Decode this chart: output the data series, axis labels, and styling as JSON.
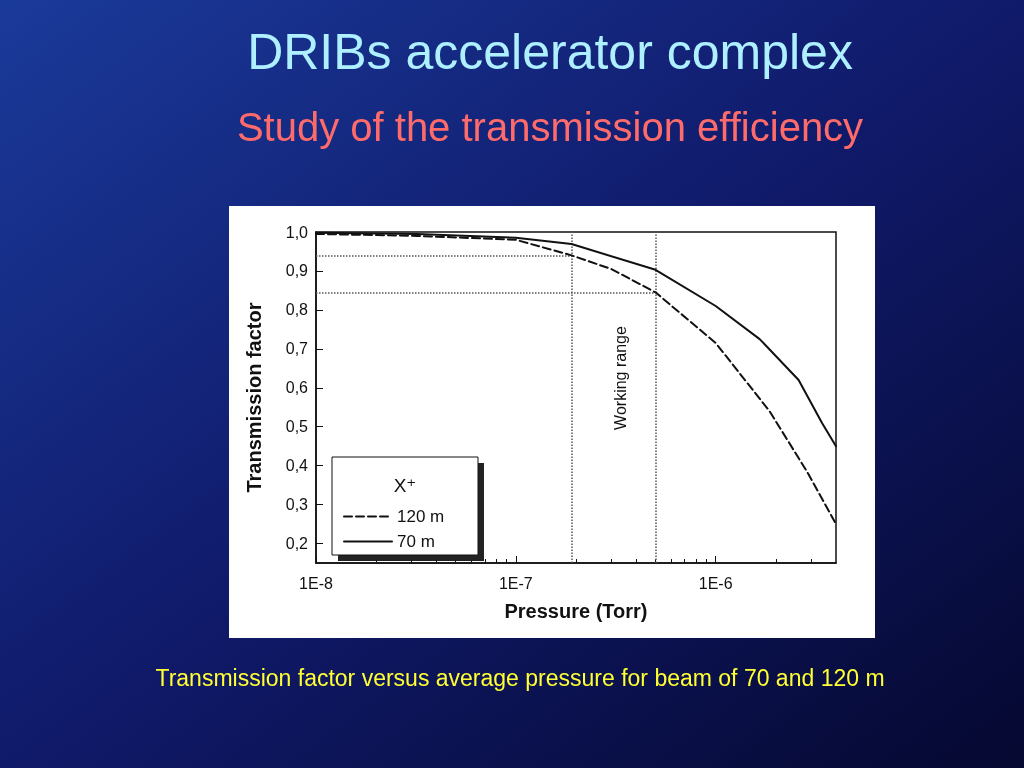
{
  "chart_data": {
    "type": "line",
    "title": "DRIBs accelerator complex",
    "subtitle": "Study of the transmission efficiency",
    "xlabel": "Pressure (Torr)",
    "ylabel": "Transmission factor",
    "legend_title": "X⁺",
    "log": "x",
    "xlim": [
      1e-08,
      4e-06
    ],
    "xticks": [
      {
        "value": 1e-08,
        "label": "1E-8"
      },
      {
        "value": 1e-07,
        "label": "1E-7"
      },
      {
        "value": 1e-06,
        "label": "1E-6"
      }
    ],
    "ylim": [
      0.15,
      1.0
    ],
    "yticks": [
      {
        "value": 0.2,
        "label": "0,2"
      },
      {
        "value": 0.3,
        "label": "0,3"
      },
      {
        "value": 0.4,
        "label": "0,4"
      },
      {
        "value": 0.5,
        "label": "0,5"
      },
      {
        "value": 0.6,
        "label": "0,6"
      },
      {
        "value": 0.7,
        "label": "0,7"
      },
      {
        "value": 0.8,
        "label": "0,8"
      },
      {
        "value": 0.9,
        "label": "0,9"
      },
      {
        "value": 1.0,
        "label": "1,0"
      }
    ],
    "series": [
      {
        "name": "120 m",
        "color": "#111111",
        "line_style": "dashed",
        "x": [
          1e-08,
          3.2e-08,
          1e-07,
          1.9e-07,
          3e-07,
          5e-07,
          1e-06,
          1.86e-06,
          2.9e-06,
          4e-06
        ],
        "values": [
          0.995,
          0.99,
          0.98,
          0.94,
          0.905,
          0.845,
          0.715,
          0.54,
          0.38,
          0.25
        ]
      },
      {
        "name": "70 m",
        "color": "#111111",
        "line_style": "solid",
        "x": [
          1e-08,
          3.2e-08,
          1e-07,
          1.9e-07,
          5e-07,
          1e-06,
          1.66e-06,
          2.6e-06,
          3.4e-06,
          4e-06
        ],
        "values": [
          0.998,
          0.995,
          0.985,
          0.969,
          0.903,
          0.81,
          0.725,
          0.62,
          0.51,
          0.45
        ]
      }
    ],
    "ref_lines": [
      {
        "axis": "x",
        "value": 1.9e-07,
        "line_style": "dotted",
        "color": "#555555"
      },
      {
        "axis": "x",
        "value": 5e-07,
        "line_style": "dotted",
        "color": "#555555"
      },
      {
        "axis": "y",
        "value": 0.94,
        "line_style": "dotted",
        "color": "#555555"
      },
      {
        "axis": "y",
        "value": 0.845,
        "line_style": "dotted",
        "color": "#555555"
      }
    ],
    "annotations": [
      "Working range",
      "Transmission factor versus average pressure for beam of 70 and 120 m"
    ],
    "legend": "bottom left",
    "grid": false,
    "marker": "none"
  }
}
